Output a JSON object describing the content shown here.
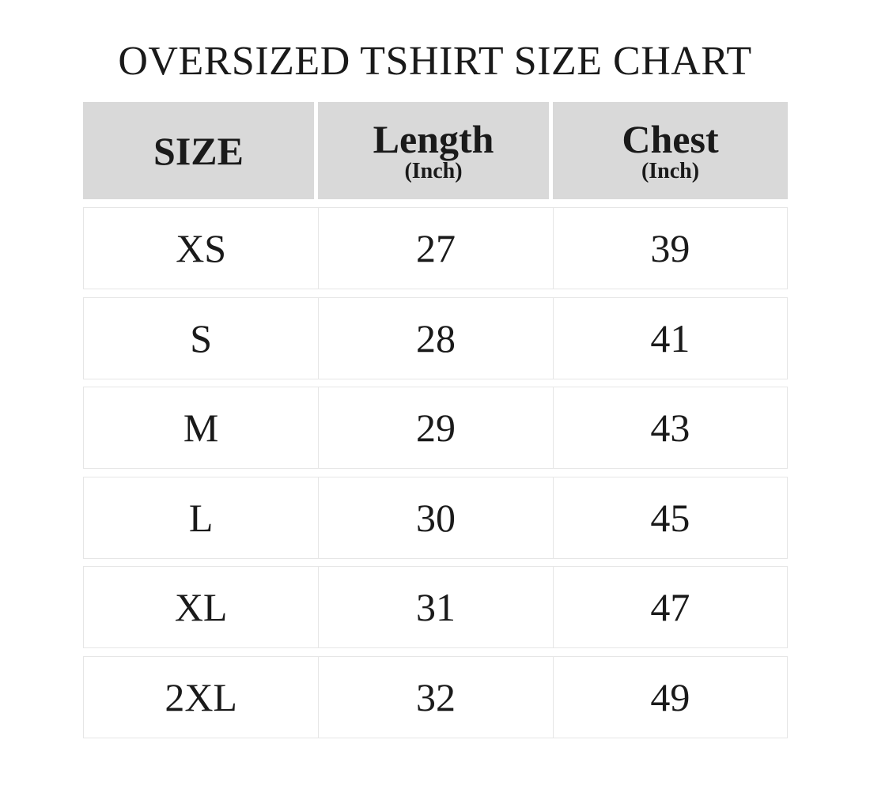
{
  "title": "OVERSIZED TSHIRT SIZE CHART",
  "header": {
    "size": "SIZE",
    "length": "Length",
    "length_unit": "(Inch)",
    "chest": "Chest",
    "chest_unit": "(Inch)"
  },
  "rows": [
    {
      "size": "XS",
      "length": "27",
      "chest": "39"
    },
    {
      "size": "S",
      "length": "28",
      "chest": "41"
    },
    {
      "size": "M",
      "length": "29",
      "chest": "43"
    },
    {
      "size": "L",
      "length": "30",
      "chest": "45"
    },
    {
      "size": "XL",
      "length": "31",
      "chest": "47"
    },
    {
      "size": "2XL",
      "length": "32",
      "chest": "49"
    }
  ],
  "colors": {
    "header_bg": "#d9d9d9",
    "border": "#e6e6e6",
    "text": "#1a1a1a"
  }
}
